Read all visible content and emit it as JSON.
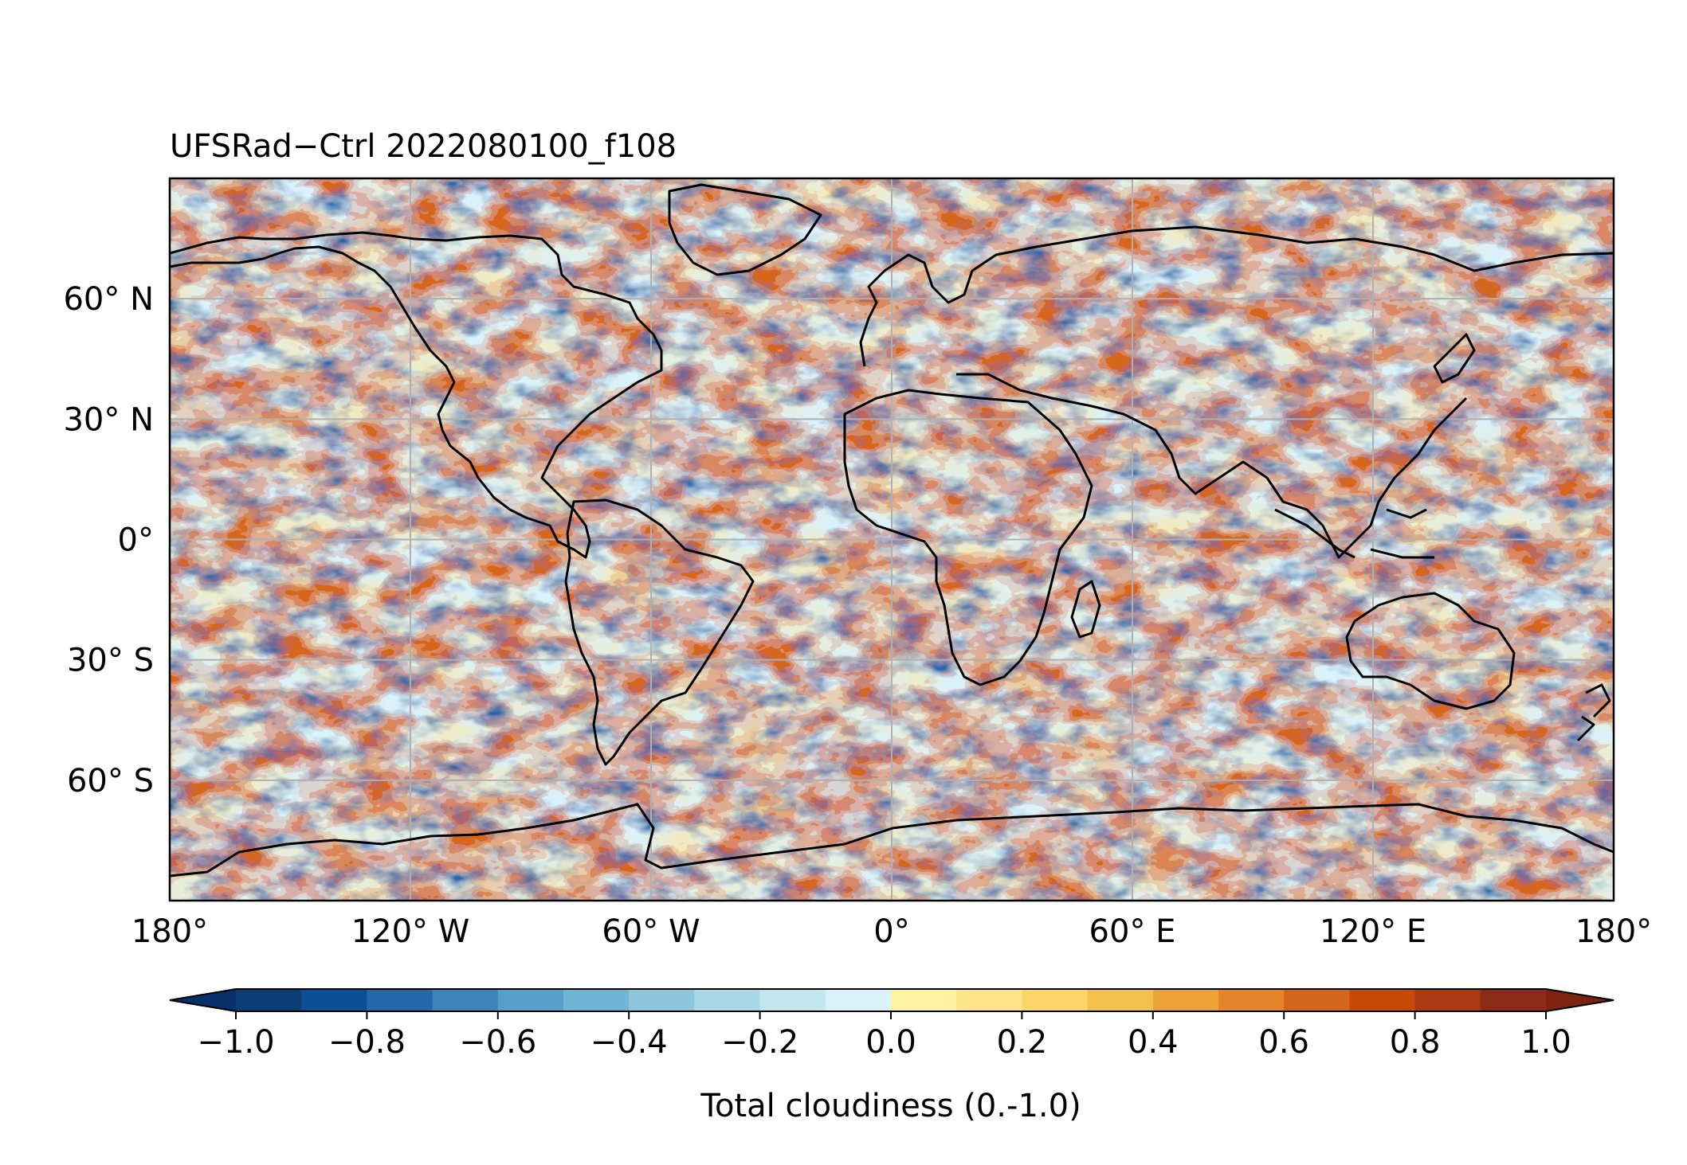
{
  "title": "UFSRad−Ctrl 2022080100_f108",
  "map": {
    "projection": "PlateCarree",
    "lon_range": [
      -180,
      180
    ],
    "lat_range": [
      -90,
      90
    ],
    "gridlines": true,
    "coastlines": true,
    "field": "difference of total cloudiness (UFSRad minus Ctrl)"
  },
  "axes": {
    "lat_ticks": [
      {
        "value": 60,
        "label": "60° N"
      },
      {
        "value": 30,
        "label": "30° N"
      },
      {
        "value": 0,
        "label": "0°"
      },
      {
        "value": -30,
        "label": "30° S"
      },
      {
        "value": -60,
        "label": "60° S"
      }
    ],
    "lon_ticks": [
      {
        "value": -180,
        "label": "180°"
      },
      {
        "value": -120,
        "label": "120° W"
      },
      {
        "value": -60,
        "label": "60° W"
      },
      {
        "value": 0,
        "label": "0°"
      },
      {
        "value": 60,
        "label": "60° E"
      },
      {
        "value": 120,
        "label": "120° E"
      },
      {
        "value": 180,
        "label": "180°"
      }
    ]
  },
  "colorbar": {
    "label": "Total cloudiness (0.-1.0)",
    "range": [
      -1.0,
      1.0
    ],
    "extend": "both",
    "levels": [
      -1.0,
      -0.9,
      -0.8,
      -0.7,
      -0.6,
      -0.5,
      -0.4,
      -0.3,
      -0.2,
      -0.1,
      0.0,
      0.1,
      0.2,
      0.3,
      0.4,
      0.5,
      0.6,
      0.7,
      0.8,
      0.9,
      1.0
    ],
    "ticks": [
      {
        "value": -1.0,
        "label": "−1.0"
      },
      {
        "value": -0.8,
        "label": "−0.8"
      },
      {
        "value": -0.6,
        "label": "−0.6"
      },
      {
        "value": -0.4,
        "label": "−0.4"
      },
      {
        "value": -0.2,
        "label": "−0.2"
      },
      {
        "value": 0.0,
        "label": "0.0"
      },
      {
        "value": 0.2,
        "label": "0.2"
      },
      {
        "value": 0.4,
        "label": "0.4"
      },
      {
        "value": 0.6,
        "label": "0.6"
      },
      {
        "value": 0.8,
        "label": "0.8"
      },
      {
        "value": 1.0,
        "label": "1.0"
      }
    ],
    "colors": [
      "#0d3e78",
      "#0a4f96",
      "#2369aa",
      "#3c83be",
      "#54a0ca",
      "#6fb5d6",
      "#8ec7dc",
      "#a9d8e6",
      "#c2e6ef",
      "#daf3fb",
      "#fff3a3",
      "#fee48a",
      "#fbd667",
      "#f2c04b",
      "#eca43a",
      "#e5852a",
      "#d6661b",
      "#c54a08",
      "#a93a12",
      "#8b2a16"
    ],
    "under_color": "#08306b",
    "over_color": "#7f2310"
  }
}
